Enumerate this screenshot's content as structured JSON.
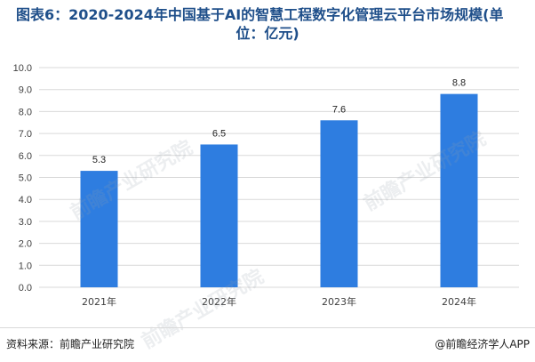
{
  "header": {
    "title_line1": "图表6：2020-2024年中国基于AI的智慧工程数字化管理云平台市场规模(单",
    "title_line2": "位：亿元)"
  },
  "footer": {
    "source": "资料来源：前瞻产业研究院",
    "brand_at": "@",
    "brand": "前瞻经济学人APP"
  },
  "watermark": {
    "text": "前瞻产业研究院"
  },
  "colors": {
    "bar": "#2e7de0",
    "grid": "#d9d9d9",
    "axis_text": "#404040"
  },
  "chart_data": {
    "type": "bar",
    "categories": [
      "2021年",
      "2022年",
      "2023年",
      "2024年"
    ],
    "values": [
      5.3,
      6.5,
      7.6,
      8.8
    ],
    "data_labels": [
      "5.3",
      "6.5",
      "7.6",
      "8.8"
    ],
    "yticks": [
      "0.0",
      "1.0",
      "2.0",
      "3.0",
      "4.0",
      "5.0",
      "6.0",
      "7.0",
      "8.0",
      "9.0",
      "10.0"
    ],
    "ylim": [
      0,
      10
    ],
    "grid": true,
    "legend": "none"
  }
}
